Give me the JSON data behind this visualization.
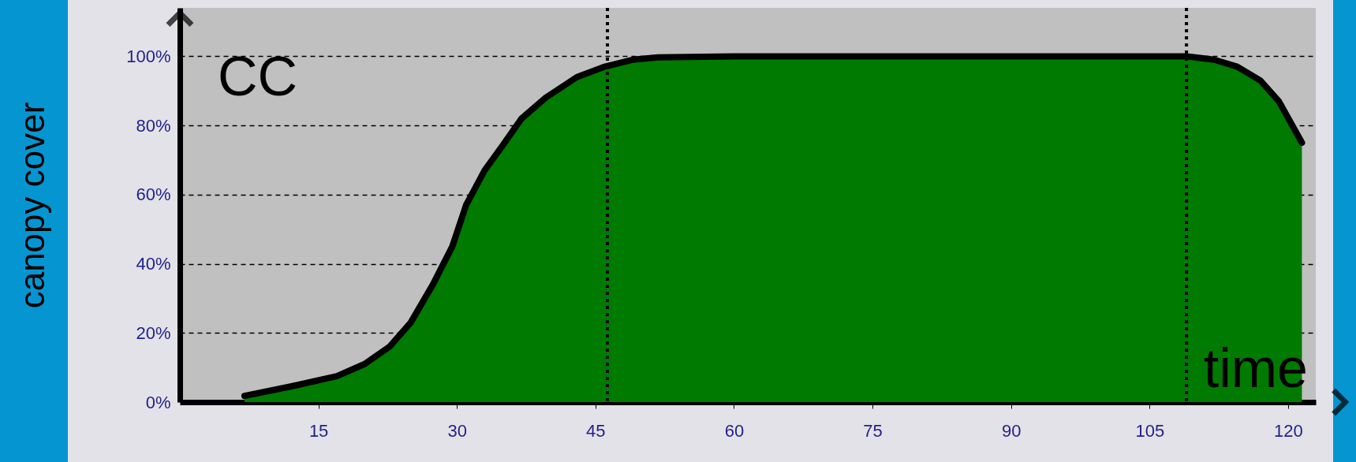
{
  "chart_data": {
    "type": "area",
    "ylabel": "canopy cover",
    "annotations": [
      "CC",
      "time"
    ],
    "x": [
      7,
      12,
      17,
      20,
      22.7,
      25,
      27.4,
      29.5,
      31,
      33,
      34.9,
      37,
      39.6,
      43,
      46,
      49,
      51.8,
      60,
      75,
      90,
      105,
      109,
      112,
      114.5,
      117,
      119,
      121.5
    ],
    "series": [
      {
        "color": "#007a00",
        "values": [
          1.8,
          4.5,
          7.5,
          11,
          16,
          23,
          34,
          45,
          57,
          67,
          74,
          82,
          88,
          94,
          97,
          99,
          99.7,
          100,
          100,
          100,
          100,
          100,
          99,
          97,
          93,
          87,
          75
        ]
      }
    ],
    "xlim": [
      0,
      123
    ],
    "ylim": [
      0,
      114
    ],
    "xticks": [
      15,
      30,
      45,
      60,
      75,
      90,
      105,
      120
    ],
    "yticks": [
      {
        "value": 0,
        "label": "0%"
      },
      {
        "value": 20,
        "label": "20%"
      },
      {
        "value": 40,
        "label": "40%"
      },
      {
        "value": 60,
        "label": "60%"
      },
      {
        "value": 80,
        "label": "80%"
      },
      {
        "value": 100,
        "label": "100%"
      }
    ],
    "grid": "y",
    "ref_lines": [
      {
        "axis": "x",
        "value": 46.3,
        "line_style": "dotted"
      },
      {
        "axis": "x",
        "value": 109,
        "line_style": "dotted"
      }
    ]
  }
}
